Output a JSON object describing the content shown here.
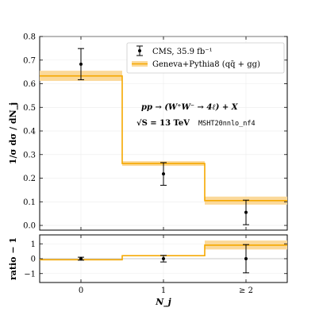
{
  "chart_data": [
    {
      "panel": "main",
      "type": "line",
      "ylabel": "1/σ dσ / dN_j",
      "ylim": [
        -0.02,
        0.8
      ],
      "y_ticks": [
        "0.0",
        "0.1",
        "0.2",
        "0.3",
        "0.4",
        "0.5",
        "0.6",
        "0.7",
        "0.8"
      ],
      "x_ticks": [
        "0",
        "1",
        "≥ 2"
      ],
      "grid": true,
      "legend_position": "top-right",
      "series": [
        {
          "name": "CMS, 35.9 fb⁻¹",
          "kind": "points-with-errors",
          "color": "#000000",
          "x": [
            "0",
            "1",
            "≥ 2"
          ],
          "y": [
            0.683,
            0.218,
            0.055
          ],
          "yerr_low": [
            0.066,
            0.048,
            0.052
          ],
          "yerr_high": [
            0.066,
            0.048,
            0.052
          ]
        },
        {
          "name": "Geneva+Pythia8 (qq̄ + gg)",
          "kind": "step-with-band",
          "color": "#f5a800",
          "band_color": "#fbd99a",
          "x": [
            "0",
            "1",
            "≥ 2"
          ],
          "y": [
            0.633,
            0.262,
            0.105
          ],
          "band_low": [
            0.612,
            0.252,
            0.088
          ],
          "band_high": [
            0.655,
            0.272,
            0.122
          ]
        }
      ],
      "annotations": [
        "pp → (W⁺W⁻ → 4ℓ) + X",
        "√S = 13 TeV",
        "MSHT20nnlo_nf4"
      ]
    },
    {
      "panel": "ratio",
      "type": "line",
      "xlabel": "N_j",
      "ylabel": "ratio − 1",
      "ylim": [
        -1.6,
        1.6
      ],
      "y_ticks": [
        "−1",
        "0",
        "1"
      ],
      "x_ticks": [
        "0",
        "1",
        "≥ 2"
      ],
      "series": [
        {
          "name": "CMS, 35.9 fb⁻¹",
          "kind": "points-with-errors",
          "x": [
            "0",
            "1",
            "≥ 2"
          ],
          "y": [
            0.0,
            0.0,
            0.0
          ],
          "yerr_low": [
            0.1,
            0.22,
            0.95
          ],
          "yerr_high": [
            0.1,
            0.22,
            0.95
          ]
        },
        {
          "name": "Geneva+Pythia8 (qq̄ + gg)",
          "kind": "step-with-band",
          "x": [
            "0",
            "1",
            "≥ 2"
          ],
          "y": [
            -0.07,
            0.2,
            0.91
          ],
          "band_low": [
            -0.1,
            0.16,
            0.62
          ],
          "band_high": [
            -0.04,
            0.25,
            1.22
          ]
        }
      ]
    }
  ]
}
